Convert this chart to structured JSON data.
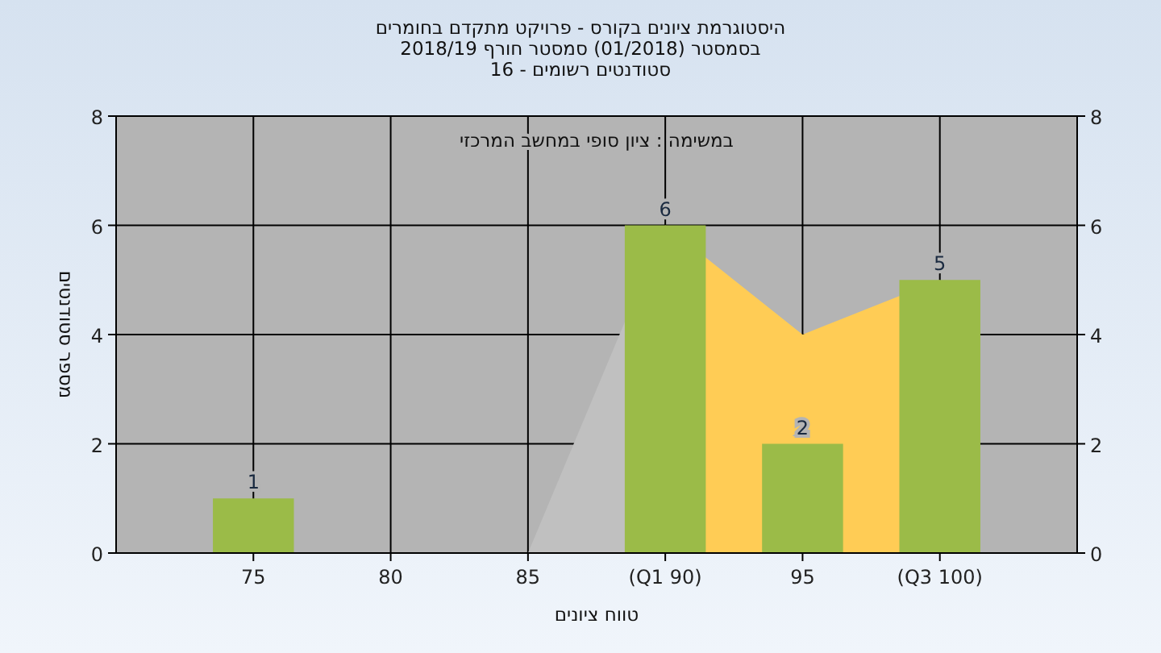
{
  "chart_data": {
    "type": "bar",
    "title": "היסטוגרמת ציונים בקורס - פרויקט מתקדם בחומרים\nבסמסטר  (01/2018)  סמסטר חורף 2018/19\nסטודנטים רשומים - 16",
    "annotations": [
      "במשימה : ציון סופי במחשב המרכזי"
    ],
    "xlabel": "טווח ציונים",
    "ylabel": "מספר סטודנטים",
    "categories": [
      "75",
      "80",
      "85",
      "(Q1 90)",
      "95",
      "(Q3 100)"
    ],
    "series": [
      {
        "type": "area",
        "color": "#c0c0c0",
        "values": [
          null,
          null,
          0,
          6,
          null,
          null
        ]
      },
      {
        "type": "area",
        "color": "#ffcc55",
        "values": [
          null,
          null,
          null,
          6,
          4,
          5
        ]
      },
      {
        "color": "#9bbb48",
        "values": [
          1,
          0,
          0,
          6,
          2,
          5
        ],
        "value_labels": [
          "1",
          null,
          null,
          "6",
          "2",
          "5"
        ]
      }
    ],
    "ylim": [
      0,
      8
    ],
    "yticks": [
      0,
      2,
      4,
      6,
      8
    ],
    "y2lim": [
      0,
      8
    ],
    "y2ticks": [
      0,
      2,
      4,
      6,
      8
    ],
    "grid": true
  }
}
